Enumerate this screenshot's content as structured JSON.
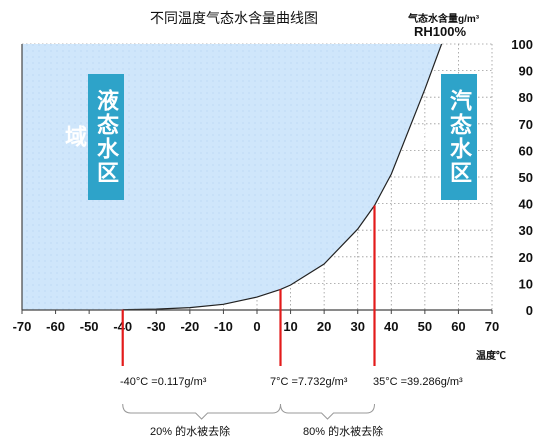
{
  "title": "不同温度气态水含量曲线图",
  "y_unit": "气态水含量g/m³",
  "rh": "RH100%",
  "x_unit": "温度℃",
  "regions": {
    "liquid": "液态水区域",
    "vapor": "汽态水区域"
  },
  "annotations": [
    {
      "text": "-40°C =0.117g/m³",
      "temp": -40,
      "value": 0.117
    },
    {
      "text": "7°C =7.732g/m³",
      "temp": 7,
      "value": 7.732
    },
    {
      "text": "35°C =39.286g/m³",
      "temp": 35,
      "value": 39.286
    }
  ],
  "removals": [
    "20% 的水被去除",
    "80% 的水被去除"
  ],
  "colors": {
    "fill": "#cfe6fb",
    "marker": "#e31b1b",
    "tile": "#2ea3c9",
    "curve": "#222222"
  },
  "chart_data": {
    "type": "area",
    "title": "不同温度气态水含量曲线图",
    "xlabel": "温度℃",
    "ylabel": "气态水含量g/m³",
    "xlim": [
      -70,
      70
    ],
    "ylim": [
      0,
      100
    ],
    "xticks": [
      -70,
      -60,
      -50,
      -40,
      -30,
      -20,
      -10,
      0,
      10,
      20,
      30,
      40,
      50,
      60,
      70
    ],
    "yticks": [
      0,
      10,
      20,
      30,
      40,
      50,
      60,
      70,
      80,
      90,
      100
    ],
    "grid": "dotted",
    "x": [
      -40,
      -30,
      -20,
      -10,
      0,
      7,
      10,
      20,
      30,
      35,
      40,
      50,
      55
    ],
    "y": [
      0.117,
      0.35,
      0.89,
      2.14,
      4.85,
      7.732,
      9.4,
      17.3,
      30.4,
      39.286,
      51.1,
      83.0,
      100
    ]
  }
}
